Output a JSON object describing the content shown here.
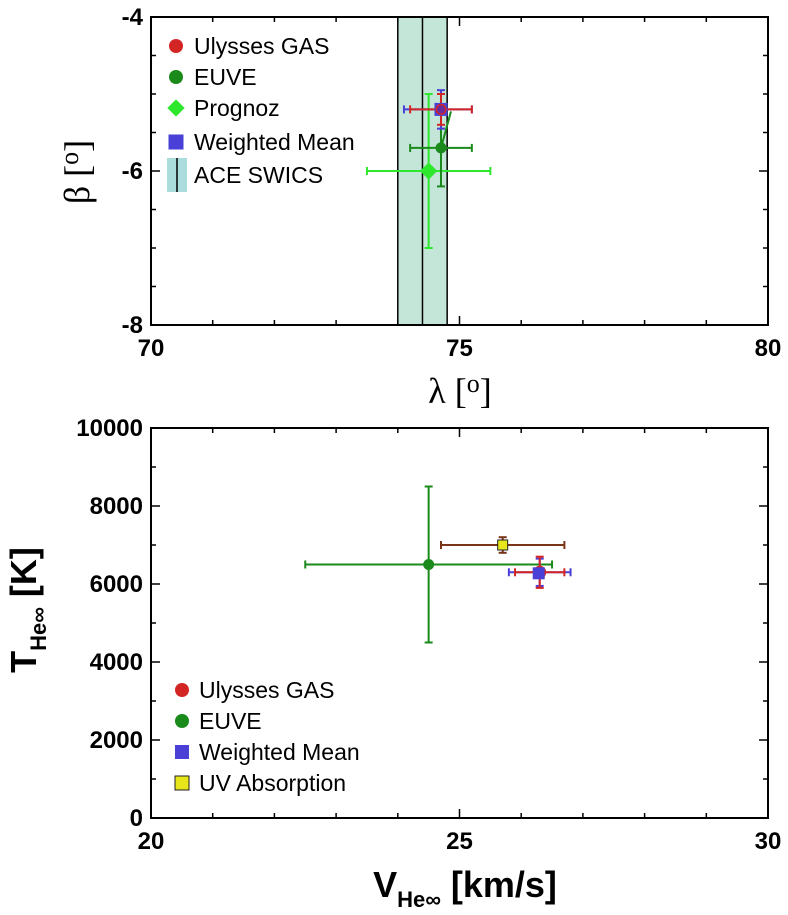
{
  "chart_data": [
    {
      "type": "scatter",
      "id": "top",
      "xlabel": "λ [o]",
      "xlabel_symbol": "λ",
      "xlabel_unit": "o",
      "ylabel": "β [o]",
      "ylabel_symbol": "β",
      "ylabel_unit": "o",
      "xlim": [
        70,
        80
      ],
      "ylim": [
        -8,
        -4
      ],
      "xticks": [
        70,
        75,
        80
      ],
      "xtick_labels": [
        "70",
        "75",
        "80"
      ],
      "yticks": [
        -8,
        -6,
        -4
      ],
      "ytick_labels": [
        "-8",
        "-6",
        "-4"
      ],
      "band": {
        "name": "ACE SWICS",
        "x_center": 74.4,
        "x_min": 74.0,
        "x_max": 74.8,
        "fill": "#c3e6d8",
        "edge": "#000000"
      },
      "series": [
        {
          "name": "Ulysses GAS",
          "marker": "circle",
          "color": "#d42525",
          "x": 74.7,
          "y": -5.2,
          "xerr": [
            0.5,
            0.5
          ],
          "yerr": [
            0.2,
            0.2
          ]
        },
        {
          "name": "EUVE",
          "marker": "circle",
          "color": "#1a8a1a",
          "x": 74.7,
          "y": -5.7,
          "xerr": [
            0.5,
            0.5
          ],
          "yerr": [
            0.5,
            0.5
          ]
        },
        {
          "name": "Prognoz",
          "marker": "diamond",
          "color": "#2ee82e",
          "x": 74.5,
          "y": -6.0,
          "xerr": [
            1.0,
            1.0
          ],
          "yerr": [
            1.0,
            1.0
          ]
        },
        {
          "name": "Weighted Mean",
          "marker": "square",
          "color": "#4a3fd6",
          "x": 74.7,
          "y": -5.2,
          "xerr": [
            0.6,
            0.5
          ],
          "yerr": [
            0.25,
            0.25
          ]
        }
      ],
      "legend": [
        "Ulysses GAS",
        "EUVE",
        "Prognoz",
        "Weighted Mean",
        "ACE SWICS"
      ],
      "legend_position": "top-left"
    },
    {
      "type": "scatter",
      "id": "bottom",
      "xlabel": "V_He∞ [km/s]",
      "xlabel_main": "V",
      "xlabel_sub": "He∞",
      "xlabel_unit": "[km/s]",
      "ylabel": "T_He∞ [K]",
      "ylabel_main": "T",
      "ylabel_sub": "He∞",
      "ylabel_unit": "[K]",
      "xlim": [
        20,
        30
      ],
      "ylim": [
        0,
        10000
      ],
      "xticks": [
        20,
        25,
        30
      ],
      "xtick_labels": [
        "20",
        "25",
        "30"
      ],
      "yticks": [
        0,
        2000,
        4000,
        6000,
        8000,
        10000
      ],
      "ytick_labels": [
        "0",
        "2000",
        "4000",
        "6000",
        "8000",
        "10000"
      ],
      "series": [
        {
          "name": "Ulysses GAS",
          "marker": "circle",
          "color": "#d42525",
          "x": 26.3,
          "y": 6300,
          "xerr": [
            0.4,
            0.4
          ],
          "yerr": [
            400,
            400
          ]
        },
        {
          "name": "EUVE",
          "marker": "circle",
          "color": "#1a8a1a",
          "x": 24.5,
          "y": 6500,
          "xerr": [
            2.0,
            2.0
          ],
          "yerr": [
            2000,
            2000
          ]
        },
        {
          "name": "Weighted Mean",
          "marker": "square",
          "color": "#4a3fd6",
          "x": 26.3,
          "y": 6300,
          "xerr": [
            0.5,
            0.5
          ],
          "yerr": [
            350,
            350
          ]
        },
        {
          "name": "UV Absorption",
          "marker": "square",
          "color": "#e6e61a",
          "x": 25.7,
          "y": 7000,
          "xerr": [
            1.0,
            1.0
          ],
          "yerr": [
            200,
            200
          ],
          "errcolor": "#7a3418"
        }
      ],
      "legend": [
        "Ulysses GAS",
        "EUVE",
        "Weighted Mean",
        "UV Absorption"
      ],
      "legend_position": "bottom-left"
    }
  ]
}
